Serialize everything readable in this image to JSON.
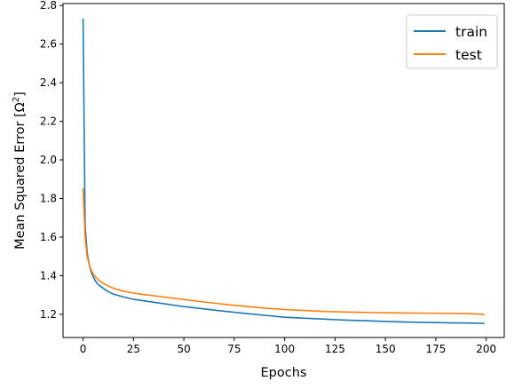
{
  "chart_data": {
    "type": "line",
    "title": "",
    "xlabel": "Epochs",
    "ylabel": "Mean Squared Error [Ω²]",
    "ylabel_parts": {
      "main": "Mean Squared Error [Ω",
      "sup": "2",
      "close": "]"
    },
    "xlim": [
      -9.95,
      208.95
    ],
    "ylim": [
      1.08,
      2.81
    ],
    "x_ticks": [
      0,
      25,
      50,
      75,
      100,
      125,
      150,
      175,
      200
    ],
    "y_ticks": [
      1.2,
      1.4,
      1.6,
      1.8,
      2.0,
      2.2,
      2.4,
      2.6,
      2.8
    ],
    "y_tick_labels": [
      "1.2",
      "1.4",
      "1.6",
      "1.8",
      "2.0",
      "2.2",
      "2.4",
      "2.6",
      "2.8"
    ],
    "grid": false,
    "legend": {
      "placement": "top-right"
    },
    "series": [
      {
        "name": "train",
        "color": "#1f77b4",
        "x": [
          0,
          1,
          2,
          3,
          4,
          5,
          6,
          7,
          8,
          10,
          12,
          15,
          20,
          25,
          30,
          40,
          50,
          60,
          70,
          80,
          90,
          100,
          110,
          120,
          130,
          140,
          150,
          160,
          170,
          180,
          190,
          199
        ],
        "y": [
          2.73,
          1.66,
          1.52,
          1.46,
          1.42,
          1.395,
          1.375,
          1.36,
          1.35,
          1.335,
          1.32,
          1.305,
          1.29,
          1.278,
          1.27,
          1.255,
          1.24,
          1.228,
          1.216,
          1.205,
          1.195,
          1.185,
          1.18,
          1.175,
          1.17,
          1.167,
          1.163,
          1.16,
          1.158,
          1.156,
          1.155,
          1.153
        ]
      },
      {
        "name": "test",
        "color": "#ff7f0e",
        "x": [
          0,
          1,
          2,
          3,
          4,
          5,
          6,
          7,
          8,
          10,
          12,
          15,
          20,
          25,
          30,
          40,
          50,
          60,
          70,
          80,
          90,
          100,
          110,
          120,
          130,
          140,
          150,
          160,
          170,
          180,
          190,
          199
        ],
        "y": [
          1.85,
          1.6,
          1.5,
          1.46,
          1.43,
          1.41,
          1.395,
          1.385,
          1.375,
          1.36,
          1.35,
          1.335,
          1.32,
          1.31,
          1.303,
          1.29,
          1.277,
          1.264,
          1.252,
          1.242,
          1.232,
          1.225,
          1.22,
          1.215,
          1.212,
          1.21,
          1.208,
          1.207,
          1.206,
          1.205,
          1.204,
          1.2
        ]
      }
    ]
  }
}
